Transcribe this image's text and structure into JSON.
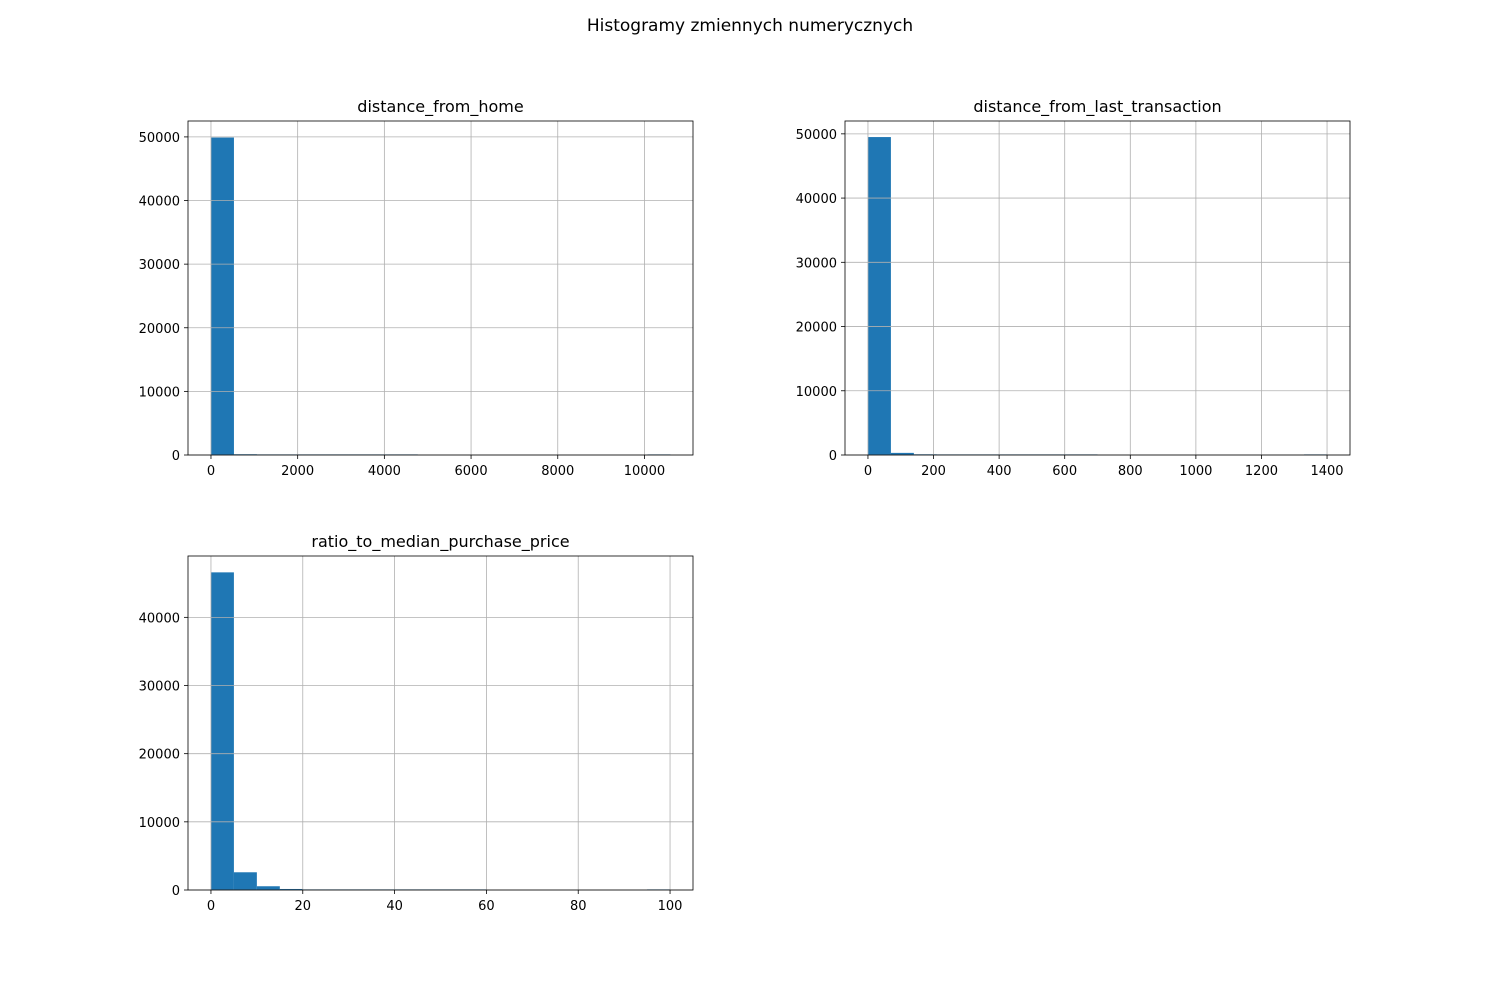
{
  "figure": {
    "suptitle": "Histogramy zmiennych numerycznych"
  },
  "colors": {
    "bar": "#1f77b4",
    "grid": "#b0b0b0",
    "axes": "#000000"
  },
  "chart_data": [
    {
      "type": "bar",
      "title": "distance_from_home",
      "xlabel": "",
      "ylabel": "",
      "grid": true,
      "xlim": [
        -530,
        11120
      ],
      "ylim": [
        0,
        52500
      ],
      "xticks": [
        0,
        2000,
        4000,
        6000,
        8000,
        10000
      ],
      "yticks": [
        0,
        10000,
        20000,
        30000,
        40000,
        50000
      ],
      "bin_edges": [
        0,
        530,
        1060,
        1590,
        2120,
        2650,
        3180,
        3710,
        4240,
        4770,
        5300,
        5830,
        6360,
        6890,
        7420,
        7950,
        8480,
        9010,
        9540,
        10070,
        10600
      ],
      "values": [
        49900,
        120,
        20,
        8,
        4,
        2,
        1,
        1,
        1,
        0,
        0,
        0,
        0,
        0,
        0,
        0,
        0,
        0,
        0,
        1
      ]
    },
    {
      "type": "bar",
      "title": "distance_from_last_transaction",
      "xlabel": "",
      "ylabel": "",
      "grid": true,
      "xlim": [
        -70,
        1470
      ],
      "ylim": [
        0,
        52000
      ],
      "xticks": [
        0,
        200,
        400,
        600,
        800,
        1000,
        1200,
        1400
      ],
      "yticks": [
        0,
        10000,
        20000,
        30000,
        40000,
        50000
      ],
      "bin_edges": [
        0,
        70,
        140,
        210,
        280,
        350,
        420,
        490,
        560,
        630,
        700,
        770,
        840,
        910,
        980,
        1050,
        1120,
        1190,
        1260,
        1330,
        1400
      ],
      "values": [
        49500,
        330,
        110,
        30,
        12,
        6,
        3,
        2,
        1,
        1,
        0,
        0,
        0,
        0,
        0,
        0,
        0,
        0,
        0,
        1
      ]
    },
    {
      "type": "bar",
      "title": "ratio_to_median_purchase_price",
      "xlabel": "",
      "ylabel": "",
      "grid": true,
      "xlim": [
        -5,
        105
      ],
      "ylim": [
        0,
        49000
      ],
      "xticks": [
        0,
        20,
        40,
        60,
        80,
        100
      ],
      "yticks": [
        0,
        10000,
        20000,
        30000,
        40000
      ],
      "bin_edges": [
        0,
        5,
        10,
        15,
        20,
        25,
        30,
        35,
        40,
        45,
        50,
        55,
        60,
        65,
        70,
        75,
        80,
        85,
        90,
        95,
        100
      ],
      "values": [
        46600,
        2600,
        550,
        150,
        50,
        20,
        10,
        5,
        3,
        2,
        1,
        1,
        0,
        0,
        0,
        0,
        0,
        0,
        0,
        1
      ]
    }
  ]
}
